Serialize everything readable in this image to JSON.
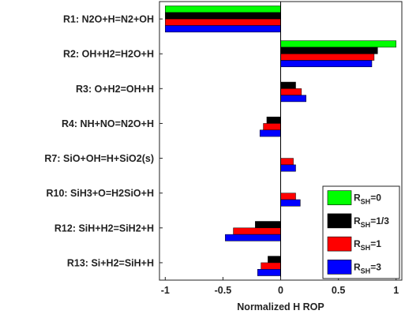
{
  "chart_data": {
    "type": "bar",
    "orientation": "horizontal",
    "categories": [
      "R1: N2O+H=N2+OH",
      "R2: OH+H2=H2O+H",
      "R3: O+H2=OH+H",
      "R4: NH+NO=N2O+H",
      "R7: SiO+OH=H+SiO2(s)",
      "R10: SiH3+O=H2SiO+H",
      "R12: SiH+H2=SiH2+H",
      "R13: Si+H2=SiH+H"
    ],
    "series": [
      {
        "name": "R_SH=0",
        "legend_main": "R",
        "legend_sub": "SH",
        "legend_tail": "=0",
        "color": "#00ff00",
        "values": [
          -1.0,
          1.0,
          0.0,
          0.0,
          0.0,
          0.0,
          0.0,
          0.0
        ]
      },
      {
        "name": "R_SH=1/3",
        "legend_main": "R",
        "legend_sub": "SH",
        "legend_tail": "=1/3",
        "color": "#000000",
        "values": [
          -1.0,
          0.84,
          0.13,
          -0.12,
          0.0,
          0.0,
          -0.22,
          -0.11
        ]
      },
      {
        "name": "R_SH=1",
        "legend_main": "R",
        "legend_sub": "SH",
        "legend_tail": "=1",
        "color": "#ff0000",
        "values": [
          -1.0,
          0.81,
          0.18,
          -0.15,
          0.11,
          0.13,
          -0.41,
          -0.17
        ]
      },
      {
        "name": "R_SH=3",
        "legend_main": "R",
        "legend_sub": "SH",
        "legend_tail": "=3",
        "color": "#0000ff",
        "values": [
          -1.0,
          0.79,
          0.22,
          -0.18,
          0.13,
          0.17,
          -0.48,
          -0.2
        ]
      }
    ],
    "xlabel": "Normalized H ROP",
    "ylabel": "",
    "xlim": [
      -1.05,
      1.05
    ],
    "xticks": [
      -1,
      -0.5,
      0,
      0.5,
      1
    ],
    "xtick_labels": [
      "-1",
      "-0.5",
      "0",
      "0.5",
      "1"
    ],
    "grid": false,
    "legend_position": "lower-right"
  }
}
